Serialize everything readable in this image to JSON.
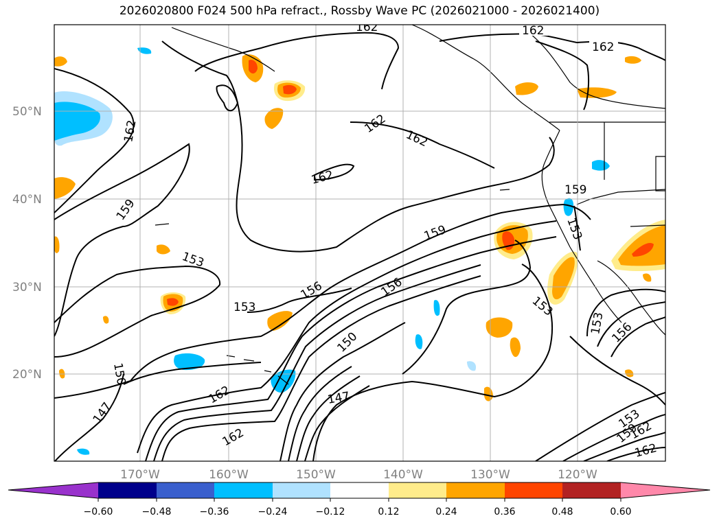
{
  "title": "2026020800 F024 500 hPa refract., Rossby Wave PC (2026021000 - 2026021400)",
  "map": {
    "lat_labels": [
      "50°N",
      "40°N",
      "30°N",
      "20°N"
    ],
    "lon_labels": [
      "170°W",
      "160°W",
      "150°W",
      "140°W",
      "130°W",
      "120°W"
    ],
    "contour_labels": [
      {
        "text": "162"
      },
      {
        "text": "162"
      },
      {
        "text": "162"
      },
      {
        "text": "162"
      },
      {
        "text": "162"
      },
      {
        "text": "162"
      },
      {
        "text": "162"
      },
      {
        "text": "159"
      },
      {
        "text": "153"
      },
      {
        "text": "153"
      },
      {
        "text": "156"
      },
      {
        "text": "156"
      },
      {
        "text": "159"
      },
      {
        "text": "159"
      },
      {
        "text": "150"
      },
      {
        "text": "147"
      },
      {
        "text": "162"
      },
      {
        "text": "162"
      },
      {
        "text": "150"
      },
      {
        "text": "147"
      },
      {
        "text": "153"
      },
      {
        "text": "153"
      },
      {
        "text": "153"
      },
      {
        "text": "156"
      },
      {
        "text": "153"
      },
      {
        "text": "159"
      },
      {
        "text": "162"
      },
      {
        "text": "162"
      }
    ]
  },
  "colorbar": {
    "ticks": [
      "−0.60",
      "−0.48",
      "−0.36",
      "−0.24",
      "−0.12",
      "0.12",
      "0.24",
      "0.36",
      "0.48",
      "0.60"
    ],
    "colors": [
      "#9932CC",
      "#00008B",
      "#3A5FCD",
      "#00BFFF",
      "#B0E2FF",
      "#FFFFFF",
      "#FFEC8B",
      "#FFA500",
      "#FF4500",
      "#B22222",
      "#FF88AA"
    ]
  }
}
